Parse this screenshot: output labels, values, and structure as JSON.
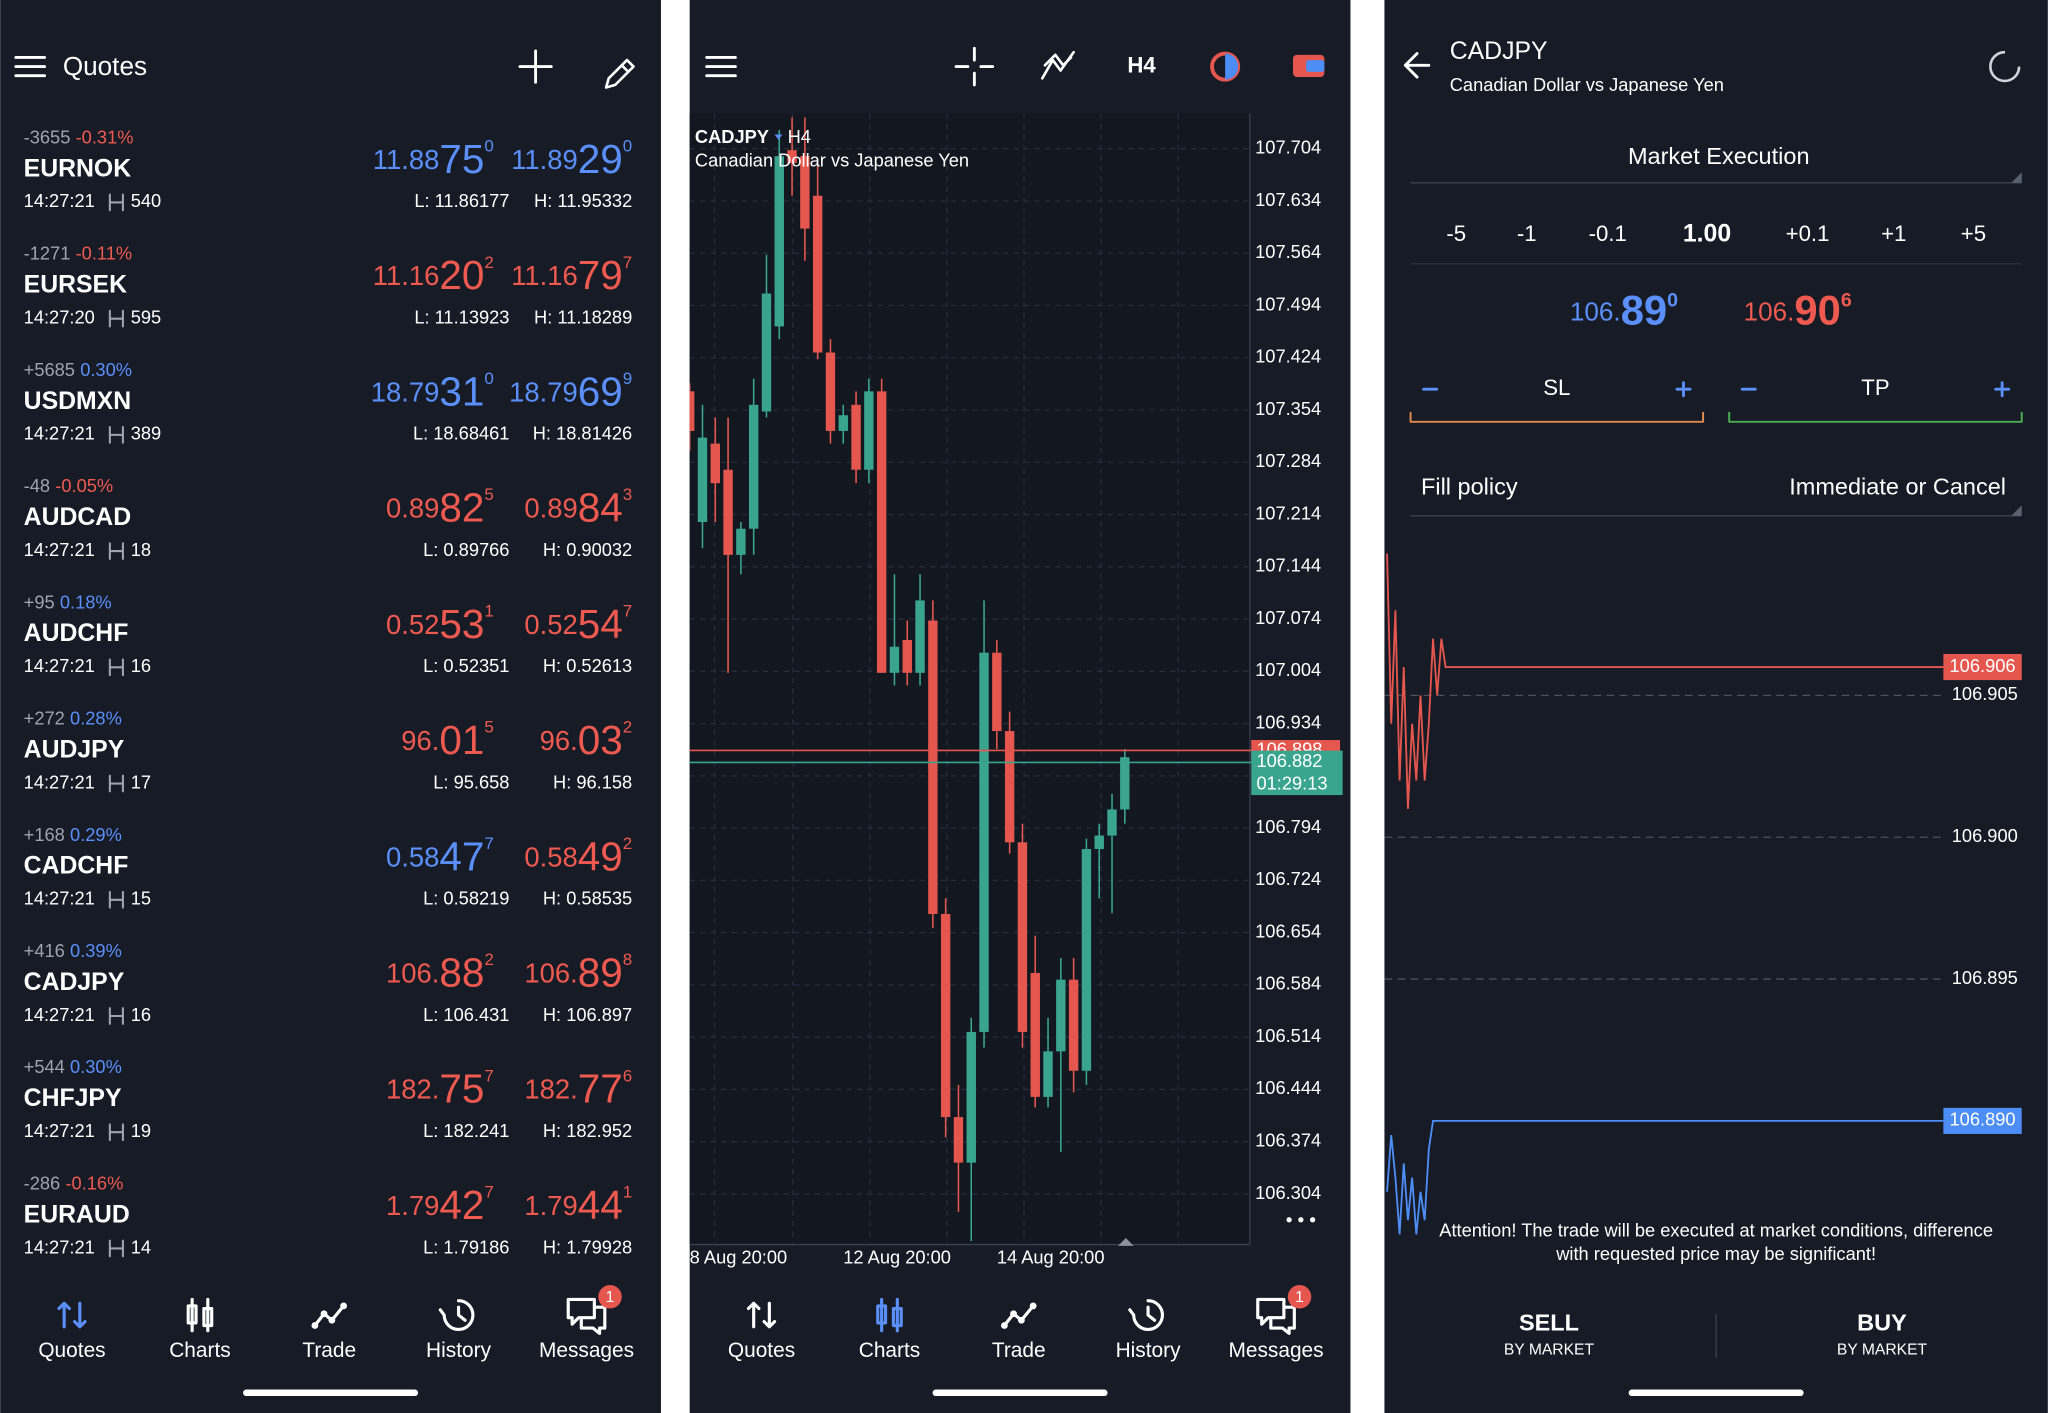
{
  "quotes_panel": {
    "title": "Quotes",
    "rows": [
      {
        "change": "-3655",
        "percent": "-0.31%",
        "symbol": "EURNOK",
        "time": "14:27:21",
        "spread": "540",
        "bid": [
          "11.88",
          "75",
          "0"
        ],
        "ask": [
          "11.89",
          "29",
          "0"
        ],
        "low": "L: 11.86177",
        "high": "H: 11.95332",
        "bid_color": "#5b8ff9",
        "ask_color": "#5b8ff9"
      },
      {
        "change": "-1271",
        "percent": "-0.11%",
        "symbol": "EURSEK",
        "time": "14:27:20",
        "spread": "595",
        "bid": [
          "11.16",
          "20",
          "2"
        ],
        "ask": [
          "11.16",
          "79",
          "7"
        ],
        "low": "L: 11.13923",
        "high": "H: 11.18289",
        "bid_color": "#ef5a50",
        "ask_color": "#ef5a50"
      },
      {
        "change": "+5685",
        "percent": "0.30%",
        "symbol": "USDMXN",
        "time": "14:27:21",
        "spread": "389",
        "bid": [
          "18.79",
          "31",
          "0"
        ],
        "ask": [
          "18.79",
          "69",
          "9"
        ],
        "low": "L: 18.68461",
        "high": "H: 18.81426",
        "bid_color": "#5b8ff9",
        "ask_color": "#5b8ff9"
      },
      {
        "change": "-48",
        "percent": "-0.05%",
        "symbol": "AUDCAD",
        "time": "14:27:21",
        "spread": "18",
        "bid": [
          "0.89",
          "82",
          "5"
        ],
        "ask": [
          "0.89",
          "84",
          "3"
        ],
        "low": "L: 0.89766",
        "high": "H: 0.90032",
        "bid_color": "#ef5a50",
        "ask_color": "#ef5a50"
      },
      {
        "change": "+95",
        "percent": "0.18%",
        "symbol": "AUDCHF",
        "time": "14:27:21",
        "spread": "16",
        "bid": [
          "0.52",
          "53",
          "1"
        ],
        "ask": [
          "0.52",
          "54",
          "7"
        ],
        "low": "L: 0.52351",
        "high": "H: 0.52613",
        "bid_color": "#ef5a50",
        "ask_color": "#ef5a50"
      },
      {
        "change": "+272",
        "percent": "0.28%",
        "symbol": "AUDJPY",
        "time": "14:27:21",
        "spread": "17",
        "bid": [
          "96.",
          "01",
          "5"
        ],
        "ask": [
          "96.",
          "03",
          "2"
        ],
        "low": "L: 95.658",
        "high": "H: 96.158",
        "bid_color": "#ef5a50",
        "ask_color": "#ef5a50"
      },
      {
        "change": "+168",
        "percent": "0.29%",
        "symbol": "CADCHF",
        "time": "14:27:21",
        "spread": "15",
        "bid": [
          "0.58",
          "47",
          "7"
        ],
        "ask": [
          "0.58",
          "49",
          "2"
        ],
        "low": "L: 0.58219",
        "high": "H: 0.58535",
        "bid_color": "#5b8ff9",
        "ask_color": "#ef5a50"
      },
      {
        "change": "+416",
        "percent": "0.39%",
        "symbol": "CADJPY",
        "time": "14:27:21",
        "spread": "16",
        "bid": [
          "106.",
          "88",
          "2"
        ],
        "ask": [
          "106.",
          "89",
          "8"
        ],
        "low": "L: 106.431",
        "high": "H: 106.897",
        "bid_color": "#ef5a50",
        "ask_color": "#ef5a50"
      },
      {
        "change": "+544",
        "percent": "0.30%",
        "symbol": "CHFJPY",
        "time": "14:27:21",
        "spread": "19",
        "bid": [
          "182.",
          "75",
          "7"
        ],
        "ask": [
          "182.",
          "77",
          "6"
        ],
        "low": "L: 182.241",
        "high": "H: 182.952",
        "bid_color": "#ef5a50",
        "ask_color": "#ef5a50"
      },
      {
        "change": "-286",
        "percent": "-0.16%",
        "symbol": "EURAUD",
        "time": "14:27:21",
        "spread": "14",
        "bid": [
          "1.79",
          "42",
          "7"
        ],
        "ask": [
          "1.79",
          "44",
          "1"
        ],
        "low": "L: 1.79186",
        "high": "H: 1.79928",
        "bid_color": "#ef5a50",
        "ask_color": "#ef5a50"
      }
    ]
  },
  "nav": {
    "items": [
      "Quotes",
      "Charts",
      "Trade",
      "History",
      "Messages"
    ],
    "badge": "1"
  },
  "chart_toolbar": {
    "timeframe": "H4"
  },
  "chart_data": [
    {
      "type": "candlestick",
      "title": "CADJPY",
      "period": "H4",
      "subtitle": "Canadian Dollar vs Japanese Yen",
      "categories": [
        "8 Aug 20:00",
        null,
        null,
        null,
        null,
        null,
        null,
        null,
        null,
        null,
        null,
        null,
        "12 Aug 20:00",
        null,
        null,
        null,
        null,
        null,
        null,
        null,
        null,
        null,
        null,
        null,
        "14 Aug 20:00",
        null,
        null,
        null,
        null,
        null,
        null,
        null,
        null,
        null,
        null
      ],
      "open": [
        107.379,
        107.204,
        107.309,
        107.274,
        107.16,
        107.195,
        107.352,
        107.466,
        107.702,
        107.694,
        107.641,
        107.431,
        107.326,
        107.361,
        107.274,
        107.379,
        107.002,
        107.046,
        107.002,
        107.072,
        106.679,
        106.407,
        106.346,
        106.521,
        107.029,
        106.924,
        106.775,
        106.6,
        106.434,
        106.495,
        106.591,
        106.469,
        106.766,
        106.784,
        106.819
      ],
      "high": [
        107.39,
        107.361,
        107.344,
        107.344,
        107.204,
        107.396,
        107.562,
        107.729,
        107.746,
        107.746,
        107.685,
        107.449,
        107.361,
        107.379,
        107.396,
        107.396,
        107.134,
        107.072,
        107.134,
        107.099,
        106.7,
        106.45,
        106.54,
        107.099,
        107.046,
        106.95,
        106.8,
        106.65,
        106.54,
        106.62,
        106.62,
        106.78,
        106.8,
        106.84,
        106.9
      ],
      "low": [
        107.3,
        107.169,
        107.204,
        107.002,
        107.134,
        107.16,
        107.344,
        107.449,
        107.641,
        107.554,
        107.422,
        107.309,
        107.309,
        107.256,
        107.256,
        107.002,
        106.985,
        106.985,
        106.985,
        106.66,
        106.38,
        106.28,
        106.241,
        106.5,
        106.9,
        106.76,
        106.5,
        106.42,
        106.42,
        106.36,
        106.44,
        106.45,
        106.7,
        106.68,
        106.8
      ],
      "close": [
        107.326,
        107.317,
        107.256,
        107.16,
        107.195,
        107.361,
        107.51,
        107.694,
        107.685,
        107.597,
        107.431,
        107.326,
        107.347,
        107.274,
        107.379,
        107.002,
        107.037,
        107.002,
        107.099,
        106.679,
        106.407,
        106.346,
        106.521,
        107.029,
        106.924,
        106.775,
        106.521,
        106.434,
        106.495,
        106.591,
        106.469,
        106.766,
        106.784,
        106.819,
        106.889
      ],
      "up_color": "#3aa58f",
      "down_color": "#e5574e",
      "ylim": [
        106.238,
        107.751
      ],
      "yticks": [
        107.704,
        107.634,
        107.564,
        107.494,
        107.424,
        107.354,
        107.284,
        107.214,
        107.144,
        107.074,
        107.004,
        106.934,
        106.864,
        106.794,
        106.724,
        106.654,
        106.584,
        106.514,
        106.444,
        106.374,
        106.304
      ],
      "grid": true,
      "ask_price": 106.898,
      "bid_price": 106.882,
      "timer": "01:29:13"
    },
    {
      "type": "line",
      "series": [
        {
          "color": "#e5574e",
          "values": [
            106.91,
            106.904,
            106.908,
            106.902,
            106.906,
            106.901,
            106.904,
            106.902,
            106.905,
            106.902,
            106.904,
            106.907,
            106.905,
            106.907,
            106.906,
            106.906
          ]
        },
        {
          "color": "#4c8df6",
          "values": [
            106.8875,
            106.8895,
            106.888,
            106.886,
            106.8885,
            106.8865,
            106.888,
            106.886,
            106.8875,
            106.8865,
            106.889,
            106.89,
            106.89
          ]
        }
      ],
      "ylim": [
        106.8867,
        106.9111
      ],
      "yticks": [
        106.905,
        {
          "value": 106.9,
          "label": "106.900"
        },
        106.895
      ],
      "grid": true,
      "ask_label": 106.906,
      "bid_label": {
        "value": 106.89,
        "label": "106.890"
      }
    }
  ],
  "trade_panel": {
    "symbol": "CADJPY",
    "description": "Canadian Dollar vs Japanese Yen",
    "execution": "Market Execution",
    "volume_steps": [
      "-5",
      "-1",
      "-0.1",
      "1.00",
      "+0.1",
      "+1",
      "+5"
    ],
    "bid": [
      "106.",
      "89",
      "0"
    ],
    "ask": [
      "106.",
      "90",
      "6"
    ],
    "sl": "SL",
    "tp": "TP",
    "fill_policy_label": "Fill policy",
    "fill_policy": "Immediate or Cancel",
    "warning": [
      "Attention! The trade will be executed at market conditions, difference",
      "with requested price may be significant!"
    ],
    "sell": "SELL",
    "sell_sub": "BY MARKET",
    "buy": "BUY",
    "buy_sub": "BY MARKET"
  }
}
